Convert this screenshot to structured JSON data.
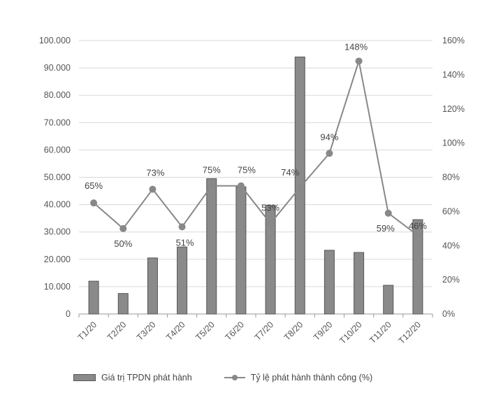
{
  "chart_data": {
    "type": "bar",
    "categories": [
      "T1/20",
      "T2/20",
      "T3/20",
      "T4/20",
      "T5/20",
      "T6/20",
      "T7/20",
      "T8/20",
      "T9/20",
      "T10/20",
      "T11/20",
      "T12/20"
    ],
    "series": [
      {
        "name": "Giá trị TPDN phát hành",
        "type": "bar",
        "axis": "left",
        "values": [
          12000,
          7500,
          20500,
          24500,
          49500,
          46500,
          39700,
          94000,
          23300,
          22500,
          10500,
          34500
        ],
        "color": "#8a8a8a"
      },
      {
        "name": "Tỷ lệ phát hành thành công (%)",
        "type": "line",
        "axis": "right",
        "values": [
          65,
          50,
          73,
          51,
          75,
          75,
          53,
          74,
          94,
          148,
          59,
          46
        ],
        "labels": [
          "65%",
          "50%",
          "73%",
          "51%",
          "75%",
          "75%",
          "53%",
          "74%",
          "94%",
          "148%",
          "59%",
          "46%"
        ],
        "color": "#888888"
      }
    ],
    "y_left": {
      "min": 0,
      "max": 100000,
      "ticks": [
        0,
        10000,
        20000,
        30000,
        40000,
        50000,
        60000,
        70000,
        80000,
        90000,
        100000
      ],
      "tick_labels": [
        "0",
        "10.000",
        "20.000",
        "30.000",
        "40.000",
        "50.000",
        "60.000",
        "70.000",
        "80.000",
        "90.000",
        "100.000"
      ]
    },
    "y_right": {
      "min": 0,
      "max": 160,
      "ticks": [
        0,
        20,
        40,
        60,
        80,
        100,
        120,
        140,
        160
      ],
      "tick_labels": [
        "0%",
        "20%",
        "40%",
        "60%",
        "80%",
        "100%",
        "120%",
        "140%",
        "160%"
      ]
    },
    "grid": true,
    "legend_position": "bottom"
  },
  "legend": {
    "bar_label": "Giá trị TPDN phát hành",
    "line_label": "Tỷ lệ phát hành thành công (%)"
  }
}
